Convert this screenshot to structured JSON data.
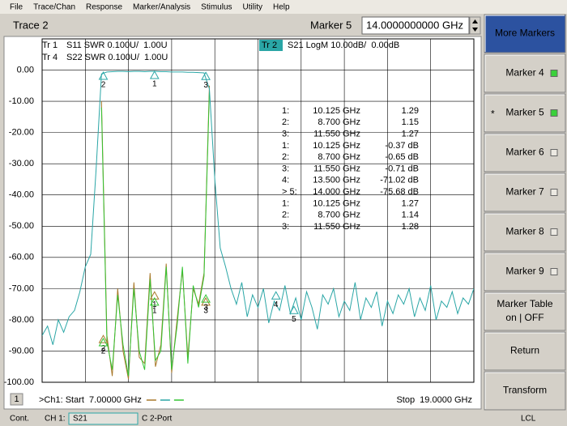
{
  "menu": [
    "File",
    "Trace/Chan",
    "Response",
    "Marker/Analysis",
    "Stimulus",
    "Utility",
    "Help"
  ],
  "title_bar": {
    "trace": "Trace 2",
    "marker_label": "Marker 5",
    "marker_value": "14.0000000000 GHz"
  },
  "chart_data": {
    "type": "line",
    "x": [
      7.0,
      7.15,
      7.3,
      7.45,
      7.6,
      7.75,
      7.9,
      8.05,
      8.2,
      8.35,
      8.5,
      8.65,
      8.8,
      8.95,
      9.1,
      9.25,
      9.4,
      9.55,
      9.7,
      9.85,
      10.0,
      10.15,
      10.3,
      10.45,
      10.6,
      10.75,
      10.9,
      11.05,
      11.2,
      11.35,
      11.5,
      11.65,
      11.8,
      11.95,
      12.1,
      12.25,
      12.4,
      12.55,
      12.7,
      12.85,
      13.0,
      13.15,
      13.3,
      13.45,
      13.6,
      13.75,
      13.9,
      14.05,
      14.2,
      14.35,
      14.5,
      14.65,
      14.8,
      14.95,
      15.1,
      15.25,
      15.4,
      15.55,
      15.7,
      15.85,
      16.0,
      16.15,
      16.3,
      16.45,
      16.6,
      16.75,
      16.9,
      17.05,
      17.2,
      17.35,
      17.5,
      17.65,
      17.8,
      17.95,
      18.1,
      18.25,
      18.4,
      18.55,
      18.7,
      18.85,
      19.0
    ],
    "xlim": [
      7,
      19
    ],
    "ylim": [
      -100,
      10
    ],
    "yticks": [
      {
        "value": 0,
        "label": "0.00"
      },
      {
        "value": -10,
        "label": "-10.00"
      },
      {
        "value": -20,
        "label": "-20.00"
      },
      {
        "value": -30,
        "label": "-30.00"
      },
      {
        "value": -40,
        "label": "-40.00"
      },
      {
        "value": -50,
        "label": "-50.00"
      },
      {
        "value": -60,
        "label": "-60.00"
      },
      {
        "value": -70,
        "label": "-70.00"
      },
      {
        "value": -80,
        "label": "-80.00"
      },
      {
        "value": -90,
        "label": "-90.00"
      },
      {
        "value": -100,
        "label": "-100.00"
      }
    ],
    "y2lim": [
      1,
      2.1
    ],
    "grid": true,
    "series": [
      {
        "trace": "Tr 1",
        "name": "S11 SWR 0.100U/  1.00U",
        "color": "#a8782a",
        "axis": "y2",
        "values": [
          null,
          null,
          null,
          null,
          null,
          null,
          null,
          null,
          null,
          null,
          null,
          1.9,
          1.15,
          1.02,
          1.3,
          1.1,
          1.01,
          1.32,
          1.08,
          1.06,
          1.35,
          1.05,
          1.12,
          1.38,
          1.03,
          1.2,
          1.36,
          1.08,
          1.3,
          1.25,
          1.35,
          1.95,
          null,
          null,
          null,
          null,
          null,
          null,
          null,
          null,
          null,
          null,
          null,
          null,
          null,
          null,
          null,
          null,
          null,
          null,
          null,
          null,
          null,
          null,
          null,
          null,
          null,
          null,
          null,
          null,
          null,
          null,
          null,
          null,
          null,
          null,
          null,
          null,
          null,
          null,
          null,
          null,
          null,
          null,
          null,
          null,
          null,
          null,
          null,
          null,
          null
        ],
        "markers": [
          {
            "label": "1",
            "x": 10.125,
            "y": 1.29
          },
          {
            "label": "2",
            "x": 8.7,
            "y": 1.15
          },
          {
            "label": "3",
            "x": 11.55,
            "y": 1.27
          }
        ]
      },
      {
        "trace": "Tr 4",
        "name": "S22 SWR 0.100U/  1.00U",
        "color": "#33c433",
        "axis": "y2",
        "values": [
          null,
          null,
          null,
          null,
          null,
          null,
          null,
          null,
          null,
          null,
          null,
          1.88,
          1.13,
          1.04,
          1.28,
          1.12,
          1.02,
          1.3,
          1.1,
          1.04,
          1.33,
          1.07,
          1.1,
          1.37,
          1.04,
          1.18,
          1.37,
          1.06,
          1.31,
          1.24,
          1.34,
          1.93,
          null,
          null,
          null,
          null,
          null,
          null,
          null,
          null,
          null,
          null,
          null,
          null,
          null,
          null,
          null,
          null,
          null,
          null,
          null,
          null,
          null,
          null,
          null,
          null,
          null,
          null,
          null,
          null,
          null,
          null,
          null,
          null,
          null,
          null,
          null,
          null,
          null,
          null,
          null,
          null,
          null,
          null,
          null,
          null,
          null,
          null,
          null,
          null,
          null
        ],
        "markers": [
          {
            "label": "1",
            "x": 10.125,
            "y": 1.27
          },
          {
            "label": "2",
            "x": 8.7,
            "y": 1.14
          },
          {
            "label": "3",
            "x": 11.55,
            "y": 1.28
          }
        ]
      },
      {
        "trace": "Tr 2",
        "name": "S21 LogM 10.00dB/  0.00dB",
        "color": "#2aa6a6",
        "values": [
          -85,
          -82,
          -88,
          -80,
          -84,
          -79,
          -77,
          -71,
          -63,
          -59,
          -32,
          -1.2,
          -0.6,
          -0.5,
          -0.4,
          -0.4,
          -0.5,
          -0.4,
          -0.4,
          -0.5,
          -0.4,
          -0.4,
          -0.5,
          -0.5,
          -0.6,
          -0.6,
          -0.6,
          -0.7,
          -0.7,
          -0.8,
          -0.9,
          -6,
          -35,
          -57,
          -63,
          -70,
          -75,
          -68,
          -79,
          -72,
          -76,
          -70,
          -81,
          -74,
          -77,
          -69,
          -78,
          -73,
          -80,
          -71,
          -76,
          -83,
          -72,
          -75,
          -70,
          -79,
          -74,
          -77,
          -68,
          -80,
          -73,
          -76,
          -71,
          -82,
          -74,
          -78,
          -72,
          -75,
          -70,
          -79,
          -73,
          -77,
          -69,
          -80,
          -74,
          -76,
          -71,
          -78,
          -73,
          -75,
          -70
        ],
        "markers": [
          {
            "label": "1",
            "x": 10.125,
            "y": -0.37
          },
          {
            "label": "2",
            "x": 8.7,
            "y": -0.65
          },
          {
            "label": "3",
            "x": 11.55,
            "y": -0.71
          },
          {
            "label": "4",
            "x": 13.5,
            "y": -71.02
          },
          {
            "label": "5",
            "x": 14.0,
            "y": -75.68
          }
        ]
      }
    ],
    "marker_table": [
      {
        "id": "1:",
        "freq": "10.125 GHz",
        "value": "1.29",
        "color": "#a8782a"
      },
      {
        "id": "2:",
        "freq": "8.700 GHz",
        "value": "1.15",
        "color": "#a8782a"
      },
      {
        "id": "3:",
        "freq": "11.550 GHz",
        "value": "1.27",
        "color": "#a8782a"
      },
      {
        "id": "1:",
        "freq": "10.125 GHz",
        "value": "-0.37 dB",
        "color": "#2aa6a6"
      },
      {
        "id": "2:",
        "freq": "8.700 GHz",
        "value": "-0.65 dB",
        "color": "#2aa6a6"
      },
      {
        "id": "3:",
        "freq": "11.550 GHz",
        "value": "-0.71 dB",
        "color": "#2aa6a6"
      },
      {
        "id": "4:",
        "freq": "13.500 GHz",
        "value": "-71.02 dB",
        "color": "#2aa6a6"
      },
      {
        "id": "> 5:",
        "freq": "14.000 GHz",
        "value": "-75.68 dB",
        "color": "#2aa6a6"
      },
      {
        "id": "1:",
        "freq": "10.125 GHz",
        "value": "1.27",
        "color": "#33c433"
      },
      {
        "id": "2:",
        "freq": "8.700 GHz",
        "value": "1.14",
        "color": "#33c433"
      },
      {
        "id": "3:",
        "freq": "11.550 GHz",
        "value": "1.28",
        "color": "#33c433"
      }
    ]
  },
  "channel": {
    "number": "1",
    "start": ">Ch1: Start  7.00000 GHz",
    "stop": "Stop  19.0000 GHz"
  },
  "status": {
    "mode": "Cont.",
    "channel": "CH 1:",
    "param": "S21",
    "cal": "C 2-Port",
    "ref": "LCL"
  },
  "softkeys": [
    {
      "lines": [
        "More Markers"
      ],
      "header": true
    },
    {
      "lines": [
        "Marker 4"
      ],
      "indicator": "on"
    },
    {
      "lines": [
        "Marker 5"
      ],
      "indicator": "on",
      "prefix": "*"
    },
    {
      "lines": [
        "Marker 6"
      ],
      "indicator": "off"
    },
    {
      "lines": [
        "Marker 7"
      ],
      "indicator": "off"
    },
    {
      "lines": [
        "Marker 8"
      ],
      "indicator": "off"
    },
    {
      "lines": [
        "Marker 9"
      ],
      "indicator": "off"
    },
    {
      "lines": [
        "Marker Table",
        "on | OFF"
      ]
    },
    {
      "lines": [
        "Return"
      ]
    },
    {
      "lines": [
        "Transform"
      ]
    }
  ]
}
